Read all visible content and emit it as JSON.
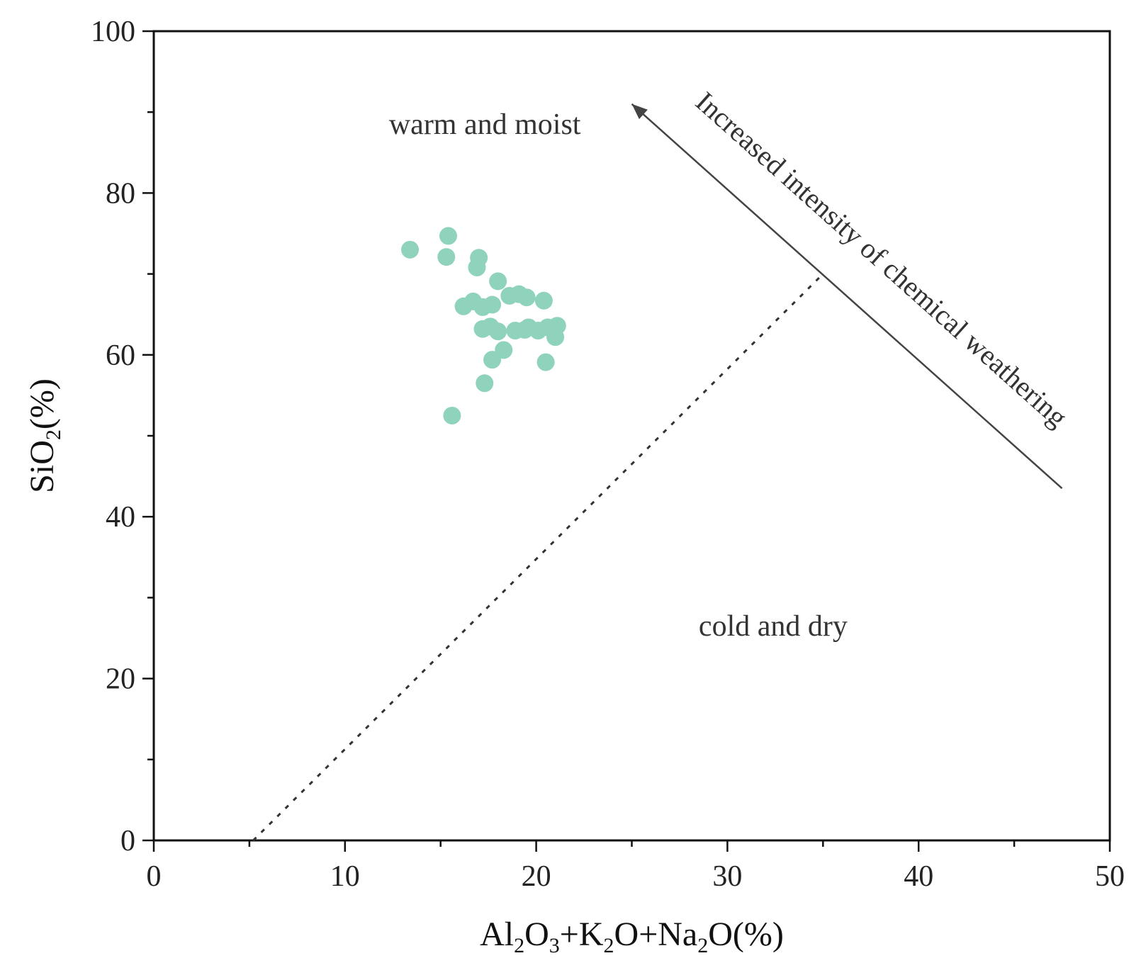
{
  "chart_data": {
    "type": "scatter",
    "title": "",
    "xlabel": "Al2O3+K2O+Na2O(%)",
    "ylabel": "SiO2(%)",
    "xlim": [
      0,
      50
    ],
    "ylim": [
      0,
      100
    ],
    "x_ticks": [
      0,
      10,
      20,
      30,
      40,
      50
    ],
    "y_ticks": [
      0,
      20,
      40,
      60,
      80,
      100
    ],
    "x_tick_labels": [
      "0",
      "10",
      "20",
      "30",
      "40",
      "50"
    ],
    "y_tick_labels": [
      "0",
      "20",
      "40",
      "60",
      "80",
      "100"
    ],
    "grid": false,
    "marker_color": "#8fd3bd",
    "series": [
      {
        "name": "samples",
        "points": [
          {
            "x": 13.4,
            "y": 73.0
          },
          {
            "x": 15.4,
            "y": 74.7
          },
          {
            "x": 15.3,
            "y": 72.1
          },
          {
            "x": 17.0,
            "y": 72.0
          },
          {
            "x": 16.9,
            "y": 70.8
          },
          {
            "x": 18.0,
            "y": 69.1
          },
          {
            "x": 18.6,
            "y": 67.3
          },
          {
            "x": 19.1,
            "y": 67.5
          },
          {
            "x": 19.5,
            "y": 67.1
          },
          {
            "x": 20.4,
            "y": 66.7
          },
          {
            "x": 16.2,
            "y": 66.0
          },
          {
            "x": 16.7,
            "y": 66.6
          },
          {
            "x": 17.2,
            "y": 65.9
          },
          {
            "x": 17.7,
            "y": 66.2
          },
          {
            "x": 17.2,
            "y": 63.2
          },
          {
            "x": 17.6,
            "y": 63.5
          },
          {
            "x": 18.0,
            "y": 62.9
          },
          {
            "x": 18.9,
            "y": 63.0
          },
          {
            "x": 19.4,
            "y": 63.1
          },
          {
            "x": 19.6,
            "y": 63.4
          },
          {
            "x": 20.1,
            "y": 63.0
          },
          {
            "x": 20.6,
            "y": 63.4
          },
          {
            "x": 21.1,
            "y": 63.6
          },
          {
            "x": 21.0,
            "y": 62.2
          },
          {
            "x": 18.3,
            "y": 60.6
          },
          {
            "x": 17.7,
            "y": 59.4
          },
          {
            "x": 20.5,
            "y": 59.1
          },
          {
            "x": 17.3,
            "y": 56.5
          },
          {
            "x": 15.6,
            "y": 52.5
          }
        ]
      }
    ],
    "boundary_line": {
      "style": "dotted",
      "from": {
        "x": 5.2,
        "y": 0
      },
      "to": {
        "x": 35,
        "y": 70
      }
    },
    "arrow": {
      "label": "Increased intensity of chemical weathering",
      "from": {
        "x": 47.5,
        "y": 43.5
      },
      "to": {
        "x": 25,
        "y": 91
      }
    },
    "regions": [
      {
        "label": "warm and moist",
        "x": 12.3,
        "y": 87.3
      },
      {
        "label": "cold and dry",
        "x": 28.5,
        "y": 25.3
      }
    ]
  }
}
